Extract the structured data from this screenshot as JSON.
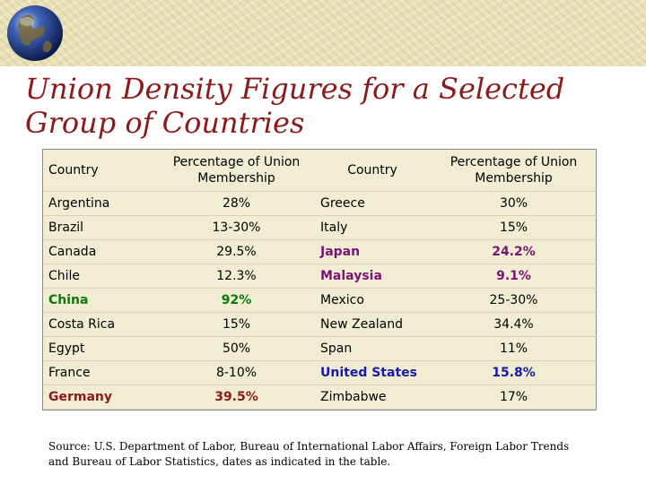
{
  "title": "Union Density Figures for a Selected Group of Countries",
  "headers": {
    "country": "Country",
    "percentage": "Percentage of Union Membership"
  },
  "rows": [
    {
      "c1": "Argentina",
      "p1": "28%",
      "c2": "Greece",
      "p2": "30%"
    },
    {
      "c1": "Brazil",
      "p1": "13-30%",
      "c2": "Italy",
      "p2": "15%"
    },
    {
      "c1": "Canada",
      "p1": "29.5%",
      "c2": "Japan",
      "p2": "24.2%"
    },
    {
      "c1": "Chile",
      "p1": "12.3%",
      "c2": "Malaysia",
      "p2": "9.1%"
    },
    {
      "c1": "China",
      "p1": "92%",
      "c2": "Mexico",
      "p2": "25-30%"
    },
    {
      "c1": "Costa Rica",
      "p1": "15%",
      "c2": "New Zealand",
      "p2": "34.4%"
    },
    {
      "c1": "Egypt",
      "p1": "50%",
      "c2": "Span",
      "p2": "11%"
    },
    {
      "c1": "France",
      "p1": "8-10%",
      "c2": "United States",
      "p2": "15.8%"
    },
    {
      "c1": "Germany",
      "p1": "39.5%",
      "c2": "Zimbabwe",
      "p2": "17%"
    }
  ],
  "source": "Source: U.S. Department of Labor, Bureau of International Labor Affairs, Foreign Labor Trends and Bureau of Labor Statistics, dates as indicated in the table.",
  "colors": {
    "title": "#8b1a1a",
    "highlight_green": "#0a7a0a",
    "highlight_purple": "#7a1474",
    "highlight_blue": "#1a1aa8",
    "highlight_red": "#8b1a1a",
    "table_bg": "#f1edd3",
    "banner_bg": "#e9e0b4"
  },
  "icons": {
    "logo": "globe-icon"
  }
}
